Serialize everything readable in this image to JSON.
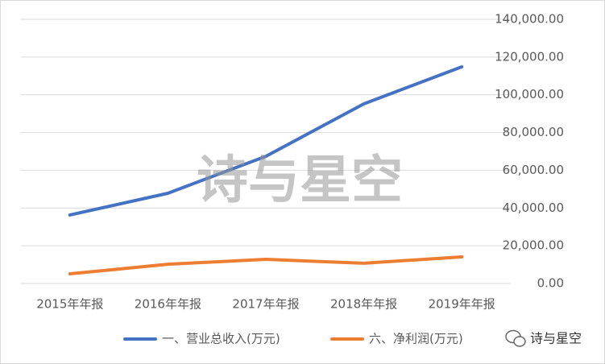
{
  "chart_data": {
    "type": "line",
    "categories": [
      "2015年年报",
      "2016年年报",
      "2017年年报",
      "2018年年报",
      "2019年年报"
    ],
    "series": [
      {
        "name": "一、营业总收入(万元)",
        "color": "#4472c4",
        "values": [
          36300,
          47800,
          67400,
          95200,
          114800
        ]
      },
      {
        "name": "六、净利润(万元)",
        "color": "#ed7d31",
        "values": [
          5100,
          10200,
          12800,
          10700,
          14100
        ]
      }
    ],
    "ylim": [
      0,
      140000
    ],
    "yticks": [
      {
        "value": 0,
        "label": "0.00"
      },
      {
        "value": 20000,
        "label": "20,000.00"
      },
      {
        "value": 40000,
        "label": "40,000.00"
      },
      {
        "value": 60000,
        "label": "60,000.00"
      },
      {
        "value": 80000,
        "label": "80,000.00"
      },
      {
        "value": 100000,
        "label": "100,000.00"
      },
      {
        "value": 120000,
        "label": "120,000.00"
      },
      {
        "value": 140000,
        "label": "140,000.00"
      }
    ],
    "y_axis_side": "right",
    "grid": true,
    "legend": "bottom",
    "watermark": "诗与星空",
    "credit": "诗与星空"
  }
}
